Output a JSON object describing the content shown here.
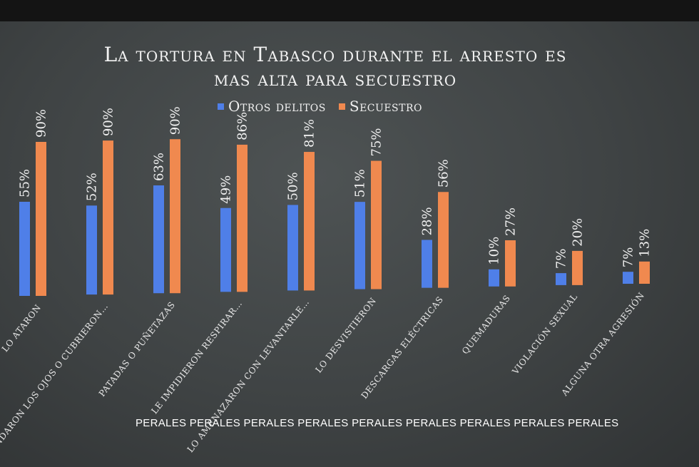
{
  "chart_data": {
    "type": "bar",
    "title": "La tortura en Tabasco durante el arresto es mas alta para secuestro",
    "title_lines": [
      "La tortura en Tabasco durante el arresto es",
      "mas alta para secuestro"
    ],
    "categories": [
      "Lo ataron",
      "Le vendaron los ojos o cubrieron…",
      "Patadas o puñetazas",
      "Le impidieron respirar…",
      "Lo amenazaron con levantarle…",
      "Lo desvistieron",
      "Descargas eléctricas",
      "Quemaduras",
      "Violación sexual",
      "Alguna otra agresión"
    ],
    "series": [
      {
        "name": "Otros delitos",
        "color": "#4f7fe8",
        "values": [
          55,
          52,
          63,
          49,
          50,
          51,
          28,
          10,
          7,
          7
        ]
      },
      {
        "name": "Secuestro",
        "color": "#f0894f",
        "values": [
          90,
          90,
          90,
          86,
          81,
          75,
          56,
          27,
          20,
          13
        ]
      }
    ],
    "value_suffix": "%",
    "ylim": [
      0,
      100
    ],
    "legend_position": "top-center",
    "grid": false
  },
  "watermark": "PERALES PERALES PERALES PERALES PERALES PERALES PERALES PERALES PERALES"
}
